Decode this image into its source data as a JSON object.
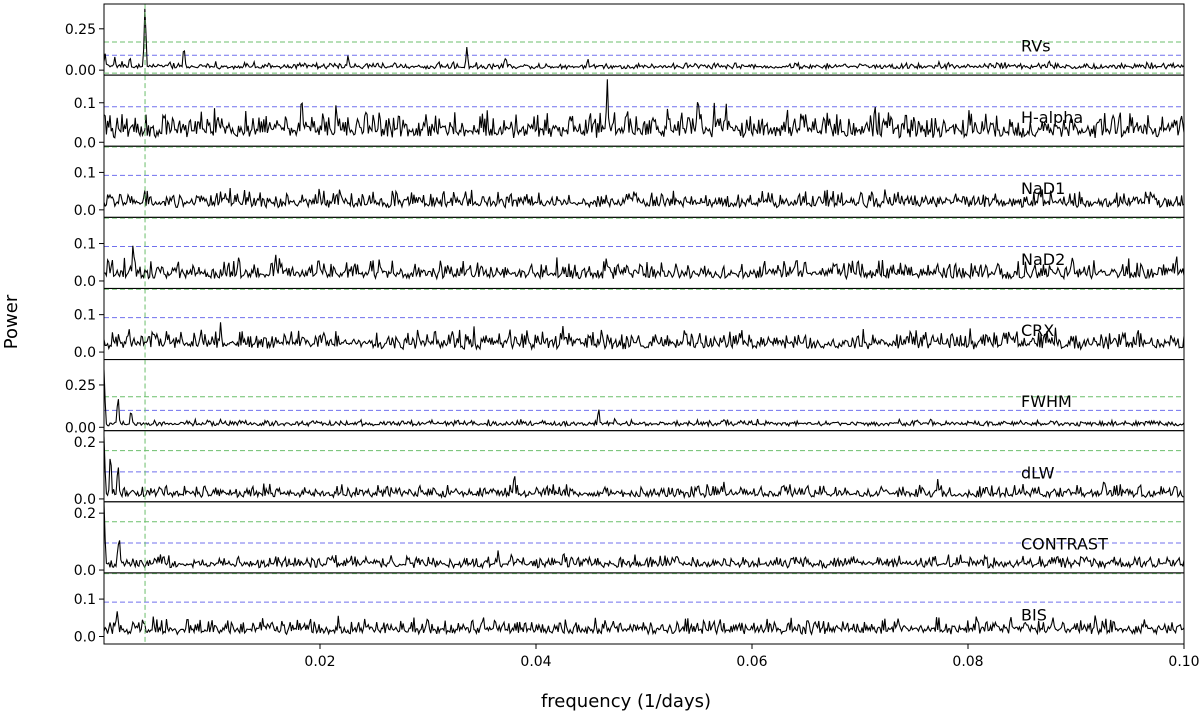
{
  "chart_data": {
    "type": "line",
    "xlabel": "frequency (1/days)",
    "ylabel": "Power",
    "xlim": [
      0.0,
      0.1
    ],
    "x_ticks": [
      0.02,
      0.04,
      0.06,
      0.08,
      0.1
    ],
    "x_tick_labels": [
      "0.02",
      "0.04",
      "0.06",
      "0.08",
      "0.10"
    ],
    "vertical_marker": {
      "x": 0.0038,
      "color": "#6cbf6c",
      "style": "dashed"
    },
    "line_color": "#000000",
    "threshold_colors": {
      "green": "#6cbf6c",
      "blue": "#7070ee"
    },
    "panels": [
      {
        "name": "RVs",
        "ylim": [
          -0.03,
          0.4
        ],
        "yticks": [
          0.0,
          0.25
        ],
        "ytick_labels": [
          "0.00",
          "0.25"
        ],
        "threshold_green": 0.17,
        "threshold_blue": 0.09,
        "base": 0.025,
        "noise": 0.02,
        "peaks": [
          [
            0.0001,
            0.1
          ],
          [
            0.001,
            0.08
          ],
          [
            0.0024,
            0.08
          ],
          [
            0.0038,
            0.38
          ],
          [
            0.0074,
            0.14
          ],
          [
            0.0226,
            0.09
          ],
          [
            0.0336,
            0.14
          ],
          [
            0.0372,
            0.08
          ],
          [
            0.0448,
            0.07
          ],
          [
            0.0875,
            0.06
          ]
        ]
      },
      {
        "name": "H-alpha",
        "ylim": [
          -0.01,
          0.17
        ],
        "yticks": [
          0.0,
          0.1
        ],
        "ytick_labels": [
          "0.0",
          "0.1"
        ],
        "threshold_green": 0.175,
        "threshold_blue": 0.09,
        "base": 0.035,
        "noise": 0.04,
        "peaks": [
          [
            0.0,
            0.07
          ],
          [
            0.0055,
            0.08
          ],
          [
            0.0183,
            0.12
          ],
          [
            0.0215,
            0.1
          ],
          [
            0.0243,
            0.09
          ],
          [
            0.0466,
            0.16
          ],
          [
            0.0522,
            0.09
          ],
          [
            0.055,
            0.12
          ],
          [
            0.0565,
            0.1
          ],
          [
            0.0576,
            0.1
          ],
          [
            0.0895,
            0.07
          ]
        ]
      },
      {
        "name": "NaD1",
        "ylim": [
          -0.02,
          0.17
        ],
        "yticks": [
          0.0,
          0.1
        ],
        "ytick_labels": [
          "0.0",
          "0.1"
        ],
        "threshold_green": 0.168,
        "threshold_blue": 0.092,
        "base": 0.02,
        "noise": 0.028,
        "peaks": [
          [
            0.0015,
            0.05
          ],
          [
            0.0335,
            0.05
          ],
          [
            0.0465,
            0.04
          ],
          [
            0.0735,
            0.05
          ]
        ]
      },
      {
        "name": "NaD2",
        "ylim": [
          -0.02,
          0.17
        ],
        "yticks": [
          0.0,
          0.1
        ],
        "ytick_labels": [
          "0.0",
          "0.1"
        ],
        "threshold_green": 0.168,
        "threshold_blue": 0.092,
        "base": 0.02,
        "noise": 0.03,
        "peaks": [
          [
            0.0027,
            0.1
          ],
          [
            0.0125,
            0.07
          ],
          [
            0.0159,
            0.07
          ],
          [
            0.0255,
            0.06
          ],
          [
            0.0465,
            0.06
          ],
          [
            0.0993,
            0.07
          ]
        ]
      },
      {
        "name": "CRX",
        "ylim": [
          -0.02,
          0.17
        ],
        "yticks": [
          0.0,
          0.1
        ],
        "ytick_labels": [
          "0.0",
          "0.1"
        ],
        "threshold_green": 0.168,
        "threshold_blue": 0.092,
        "base": 0.025,
        "noise": 0.03,
        "peaks": [
          [
            0.009,
            0.06
          ],
          [
            0.0108,
            0.08
          ],
          [
            0.0425,
            0.07
          ],
          [
            0.045,
            0.05
          ],
          [
            0.0838,
            0.06
          ]
        ]
      },
      {
        "name": "FWHM",
        "ylim": [
          -0.02,
          0.4
        ],
        "yticks": [
          0.0,
          0.25
        ],
        "ytick_labels": [
          "0.00",
          "0.25"
        ],
        "threshold_green": 0.18,
        "threshold_blue": 0.1,
        "base": 0.025,
        "noise": 0.018,
        "peaks": [
          [
            0.0,
            0.34
          ],
          [
            0.0013,
            0.18
          ],
          [
            0.0025,
            0.1
          ],
          [
            0.0458,
            0.11
          ],
          [
            0.0765,
            0.05
          ]
        ]
      },
      {
        "name": "dLW",
        "ylim": [
          -0.01,
          0.24
        ],
        "yticks": [
          0.0,
          0.2
        ],
        "ytick_labels": [
          "0.0",
          "0.2"
        ],
        "threshold_green": 0.17,
        "threshold_blue": 0.095,
        "base": 0.02,
        "noise": 0.025,
        "peaks": [
          [
            0.0,
            0.22
          ],
          [
            0.0006,
            0.16
          ],
          [
            0.0013,
            0.12
          ],
          [
            0.038,
            0.09
          ],
          [
            0.0574,
            0.06
          ],
          [
            0.0772,
            0.07
          ],
          [
            0.0926,
            0.07
          ]
        ]
      },
      {
        "name": "CONTRAST",
        "ylim": [
          -0.01,
          0.24
        ],
        "yticks": [
          0.0,
          0.2
        ],
        "ytick_labels": [
          "0.0",
          "0.2"
        ],
        "threshold_green": 0.17,
        "threshold_blue": 0.095,
        "base": 0.025,
        "noise": 0.025,
        "peaks": [
          [
            0.0,
            0.24
          ],
          [
            0.0014,
            0.12
          ],
          [
            0.0365,
            0.07
          ],
          [
            0.0515,
            0.05
          ],
          [
            0.0905,
            0.05
          ]
        ]
      },
      {
        "name": "BIS",
        "ylim": [
          -0.02,
          0.17
        ],
        "yticks": [
          0.0,
          0.1
        ],
        "ytick_labels": [
          "0.0",
          "0.1"
        ],
        "threshold_green": 0.168,
        "threshold_blue": 0.092,
        "base": 0.02,
        "noise": 0.025,
        "peaks": [
          [
            0.0012,
            0.07
          ],
          [
            0.0036,
            0.05
          ],
          [
            0.0147,
            0.05
          ],
          [
            0.0362,
            0.05
          ],
          [
            0.0455,
            0.05
          ],
          [
            0.0735,
            0.05
          ],
          [
            0.0918,
            0.06
          ]
        ]
      }
    ]
  }
}
